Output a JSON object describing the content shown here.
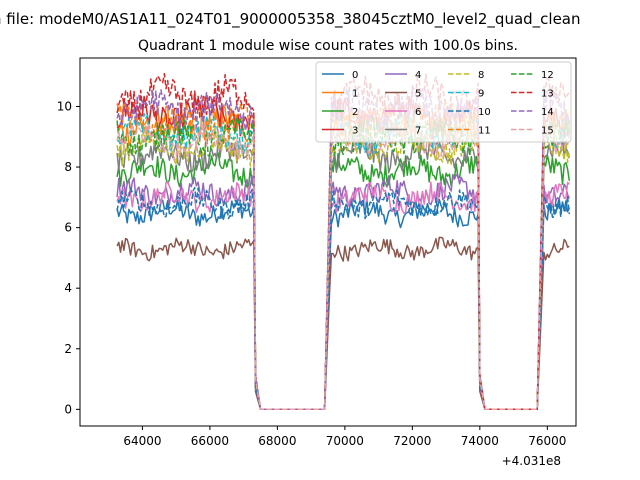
{
  "figure": {
    "suptitle": "n file: modeM0/AS1A11_024T01_9000005358_38045cztM0_level2_quad_clean",
    "title": "Quadrant 1 module wise count rates with 100.0s bins.",
    "offset_label": "+4.031e8"
  },
  "chart_data": {
    "type": "line",
    "title": "Quadrant 1 module wise count rates with 100.0s bins.",
    "xlabel": "",
    "ylabel": "",
    "x_offset": 403100000,
    "xlim": [
      62150,
      76850
    ],
    "ylim": [
      -0.55,
      11.6
    ],
    "xticks": [
      64000,
      66000,
      68000,
      70000,
      72000,
      74000,
      76000
    ],
    "xtick_labels": [
      "64000",
      "66000",
      "68000",
      "70000",
      "72000",
      "74000",
      "76000"
    ],
    "yticks": [
      0,
      2,
      4,
      6,
      8,
      10
    ],
    "ytick_labels": [
      "0",
      "2",
      "4",
      "6",
      "8",
      "10"
    ],
    "grid": false,
    "legend_position": "top-right",
    "segments": [
      {
        "start": 63250,
        "end": 67300
      },
      {
        "start": 67350,
        "end": 67450,
        "falling": true
      },
      {
        "start": 67500,
        "end": 69400,
        "zero": true
      },
      {
        "start": 69450,
        "end": 69550,
        "rising": true
      },
      {
        "start": 69600,
        "end": 73950
      },
      {
        "start": 74000,
        "end": 74100,
        "falling": true
      },
      {
        "start": 74150,
        "end": 75700,
        "zero": true
      },
      {
        "start": 75750,
        "end": 75850,
        "rising": true
      },
      {
        "start": 75900,
        "end": 76650
      }
    ],
    "series": [
      {
        "name": "0",
        "level": 6.5,
        "color": "#1f77b4",
        "dash": "solid"
      },
      {
        "name": "1",
        "level": 9.4,
        "color": "#ff7f0e",
        "dash": "solid"
      },
      {
        "name": "2",
        "level": 7.9,
        "color": "#2ca02c",
        "dash": "solid"
      },
      {
        "name": "3",
        "level": 9.7,
        "color": "#d62728",
        "dash": "solid"
      },
      {
        "name": "4",
        "level": 7.2,
        "color": "#9467bd",
        "dash": "solid"
      },
      {
        "name": "5",
        "level": 5.3,
        "color": "#8c564b",
        "dash": "solid"
      },
      {
        "name": "6",
        "level": 7.0,
        "color": "#e377c2",
        "dash": "solid"
      },
      {
        "name": "7",
        "level": 8.4,
        "color": "#7f7f7f",
        "dash": "solid"
      },
      {
        "name": "8",
        "level": 8.7,
        "color": "#bcbd22",
        "dash": "dashed"
      },
      {
        "name": "9",
        "level": 9.1,
        "color": "#17becf",
        "dash": "dashed"
      },
      {
        "name": "10",
        "level": 6.8,
        "color": "#1f77b4",
        "dash": "dashed"
      },
      {
        "name": "11",
        "level": 9.5,
        "color": "#ff7f0e",
        "dash": "dashed"
      },
      {
        "name": "12",
        "level": 9.0,
        "color": "#2ca02c",
        "dash": "dashed"
      },
      {
        "name": "13",
        "level": 10.3,
        "color": "#d62728",
        "dash": "dashed"
      },
      {
        "name": "14",
        "level": 9.9,
        "color": "#9467bd",
        "dash": "dashed"
      },
      {
        "name": "15",
        "level": 8.9,
        "color": "#e8a0a6",
        "dash": "dashed"
      }
    ]
  }
}
